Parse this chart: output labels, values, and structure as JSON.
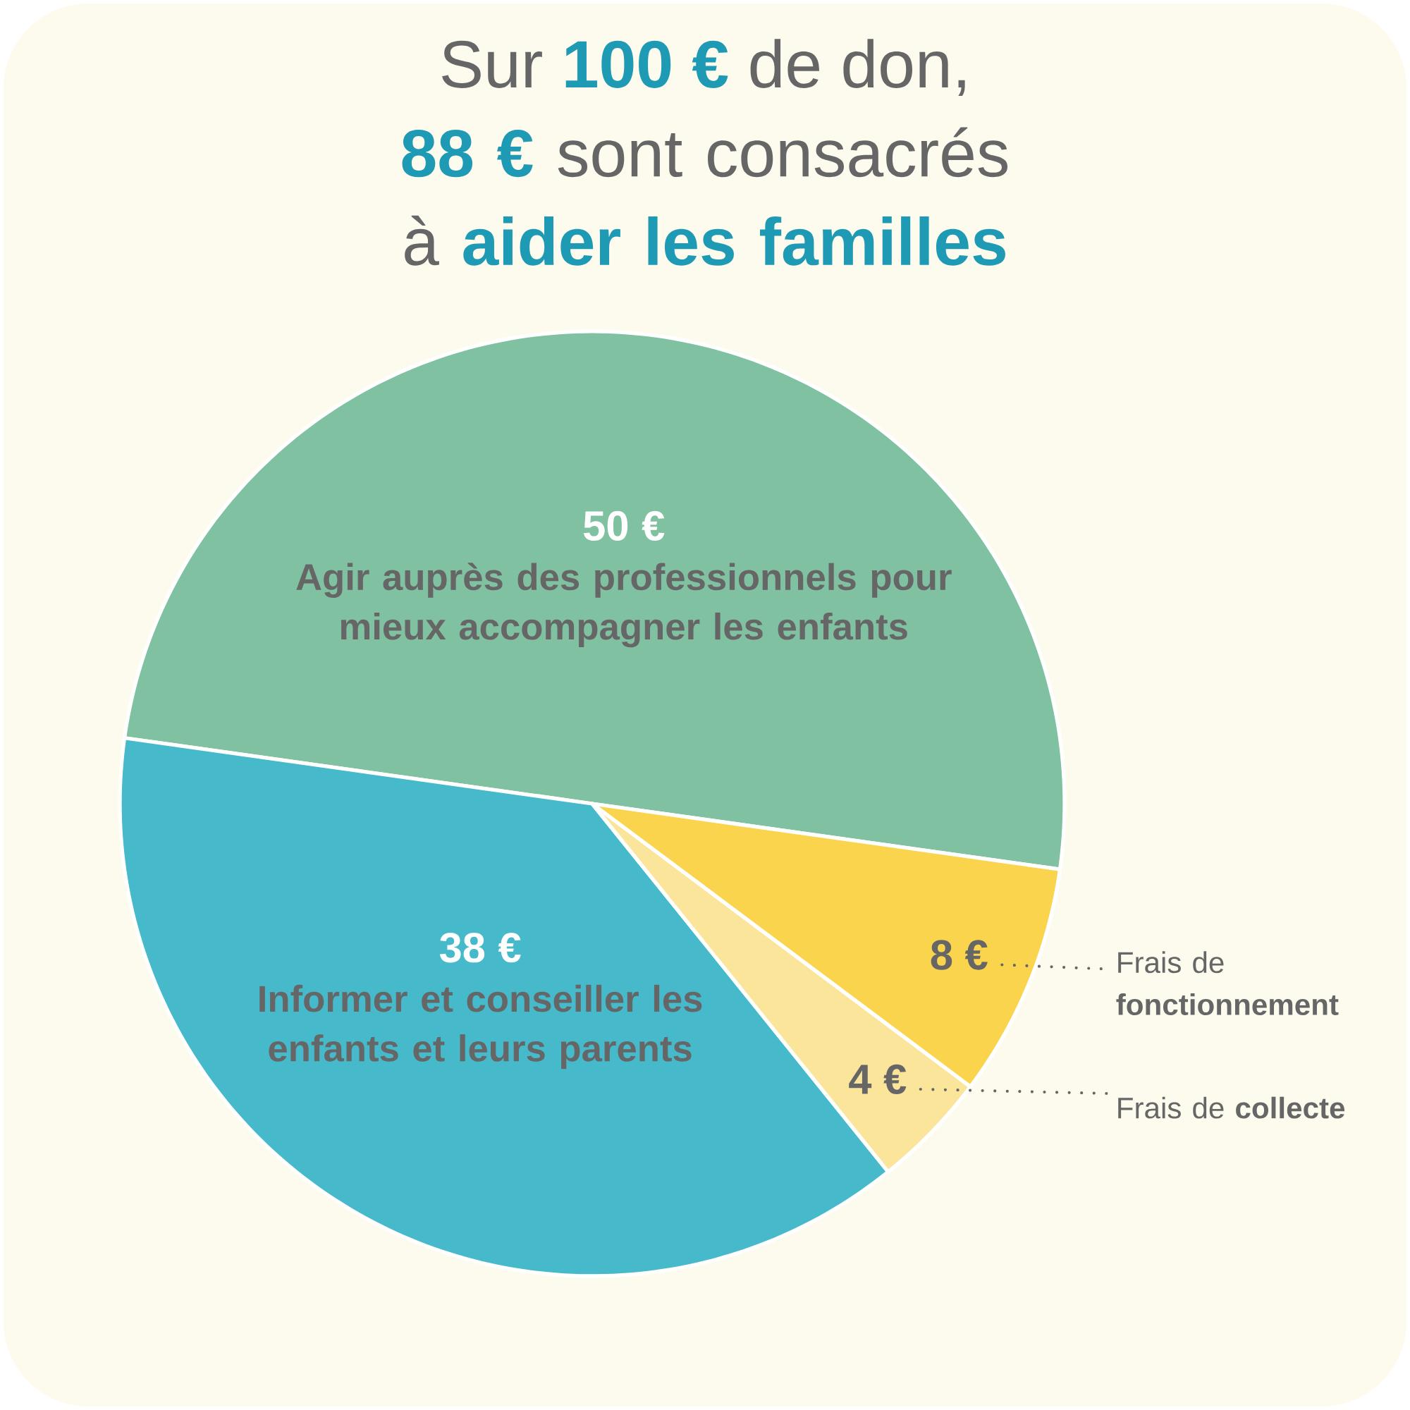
{
  "chart_data": {
    "type": "pie",
    "title": "Sur **100 €** de don,",
    "subtitle": "**88 €** sont consacrés à **aider les familles**",
    "categories": [
      "Agir auprès des professionnels pour mieux accompagner les enfants",
      "Informer et conseiller les enfants et leurs parents",
      "Frais de **collecte**",
      "Frais de **fonctionnement**"
    ],
    "values": [
      50,
      38,
      4,
      8
    ],
    "colors": [
      "#80c1a2",
      "#46bacb",
      "#fbe59a",
      "#f9d44c"
    ],
    "value_labels": [
      "50 €",
      "38 €",
      "4 €",
      "8 €"
    ]
  }
}
